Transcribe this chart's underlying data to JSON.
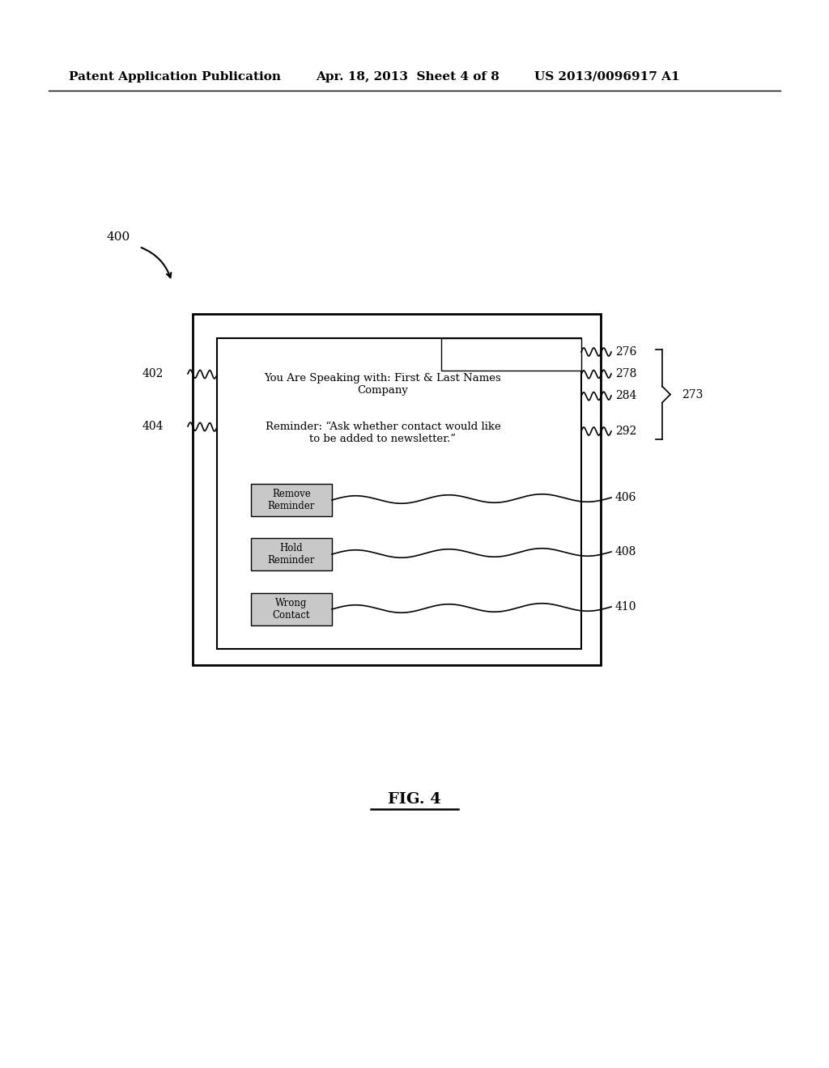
{
  "bg_color": "#ffffff",
  "header_left": "Patent Application Publication",
  "header_mid": "Apr. 18, 2013  Sheet 4 of 8",
  "header_right": "US 2013/0096917 A1",
  "fig_label": "FIG. 4",
  "label_400": "400",
  "label_402": "402",
  "label_404": "404",
  "label_273": "273",
  "label_276": "276",
  "label_278": "278",
  "label_284": "284",
  "label_292": "292",
  "label_406": "406",
  "label_408": "408",
  "label_410": "410",
  "text_speaking": "You Are Speaking with: First & Last Names\nCompany",
  "text_reminder": "Reminder: “Ask whether contact would like\nto be added to newsletter.”",
  "btn_remove": "Remove\nReminder",
  "btn_hold": "Hold\nReminder",
  "btn_wrong": "Wrong\nContact"
}
